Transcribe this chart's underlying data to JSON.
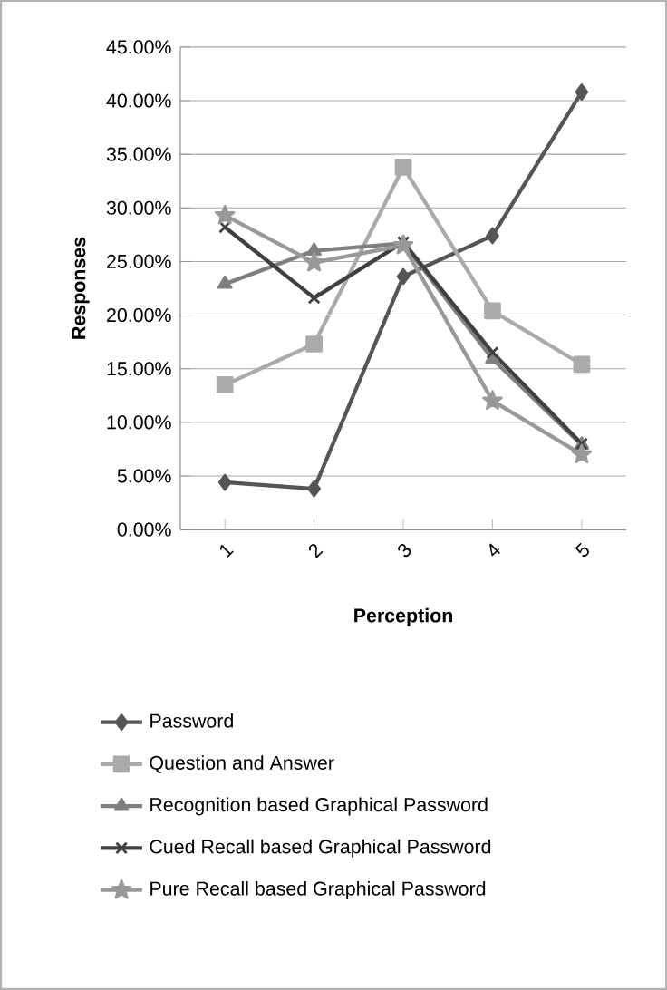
{
  "chart_data": {
    "type": "line",
    "xlabel": "Perception",
    "ylabel": "Responses",
    "categories": [
      "1",
      "2",
      "3",
      "4",
      "5"
    ],
    "series": [
      {
        "name": "Password",
        "color": "#555555",
        "marker": "diamond",
        "values": [
          4.4,
          3.8,
          23.6,
          27.4,
          40.8
        ]
      },
      {
        "name": "Question and Answer",
        "color": "#aaaaaa",
        "marker": "square",
        "values": [
          13.5,
          17.3,
          33.8,
          20.4,
          15.4
        ]
      },
      {
        "name": "Recognition based Graphical Password",
        "color": "#7f7f7f",
        "marker": "triangle",
        "values": [
          22.9,
          26.0,
          26.7,
          15.9,
          7.9
        ]
      },
      {
        "name": "Cued Recall based Graphical Password",
        "color": "#404040",
        "marker": "cross",
        "values": [
          28.2,
          21.6,
          26.8,
          16.5,
          8.0
        ]
      },
      {
        "name": "Pure Recall based Graphical Password",
        "color": "#999999",
        "marker": "star",
        "values": [
          29.3,
          24.9,
          26.5,
          12.0,
          7.0
        ]
      }
    ],
    "ylim": [
      0,
      45
    ],
    "yticks": [
      {
        "value": 0,
        "label": "0.00%"
      },
      {
        "value": 5,
        "label": "5.00%"
      },
      {
        "value": 10,
        "label": "10.00%"
      },
      {
        "value": 15,
        "label": "15.00%"
      },
      {
        "value": 20,
        "label": "20.00%"
      },
      {
        "value": 25,
        "label": "25.00%"
      },
      {
        "value": 30,
        "label": "30.00%"
      },
      {
        "value": 35,
        "label": "35.00%"
      },
      {
        "value": 40,
        "label": "40.00%"
      },
      {
        "value": 45,
        "label": "45.00%"
      }
    ],
    "grid": "y",
    "legend": "bottom"
  }
}
